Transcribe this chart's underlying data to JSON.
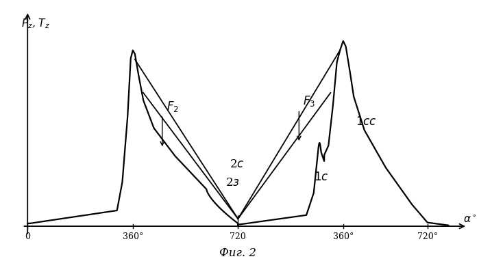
{
  "background_color": "#ffffff",
  "line_color": "#111111",
  "title": "Фиг. 2",
  "xtick_positions": [
    0.0,
    1.0,
    2.0,
    3.0,
    3.8
  ],
  "xtick_labels": [
    "0",
    "360°",
    "720",
    "360°",
    "720°"
  ],
  "xlim": [
    -0.08,
    4.2
  ],
  "ylim": [
    -0.08,
    1.18
  ]
}
